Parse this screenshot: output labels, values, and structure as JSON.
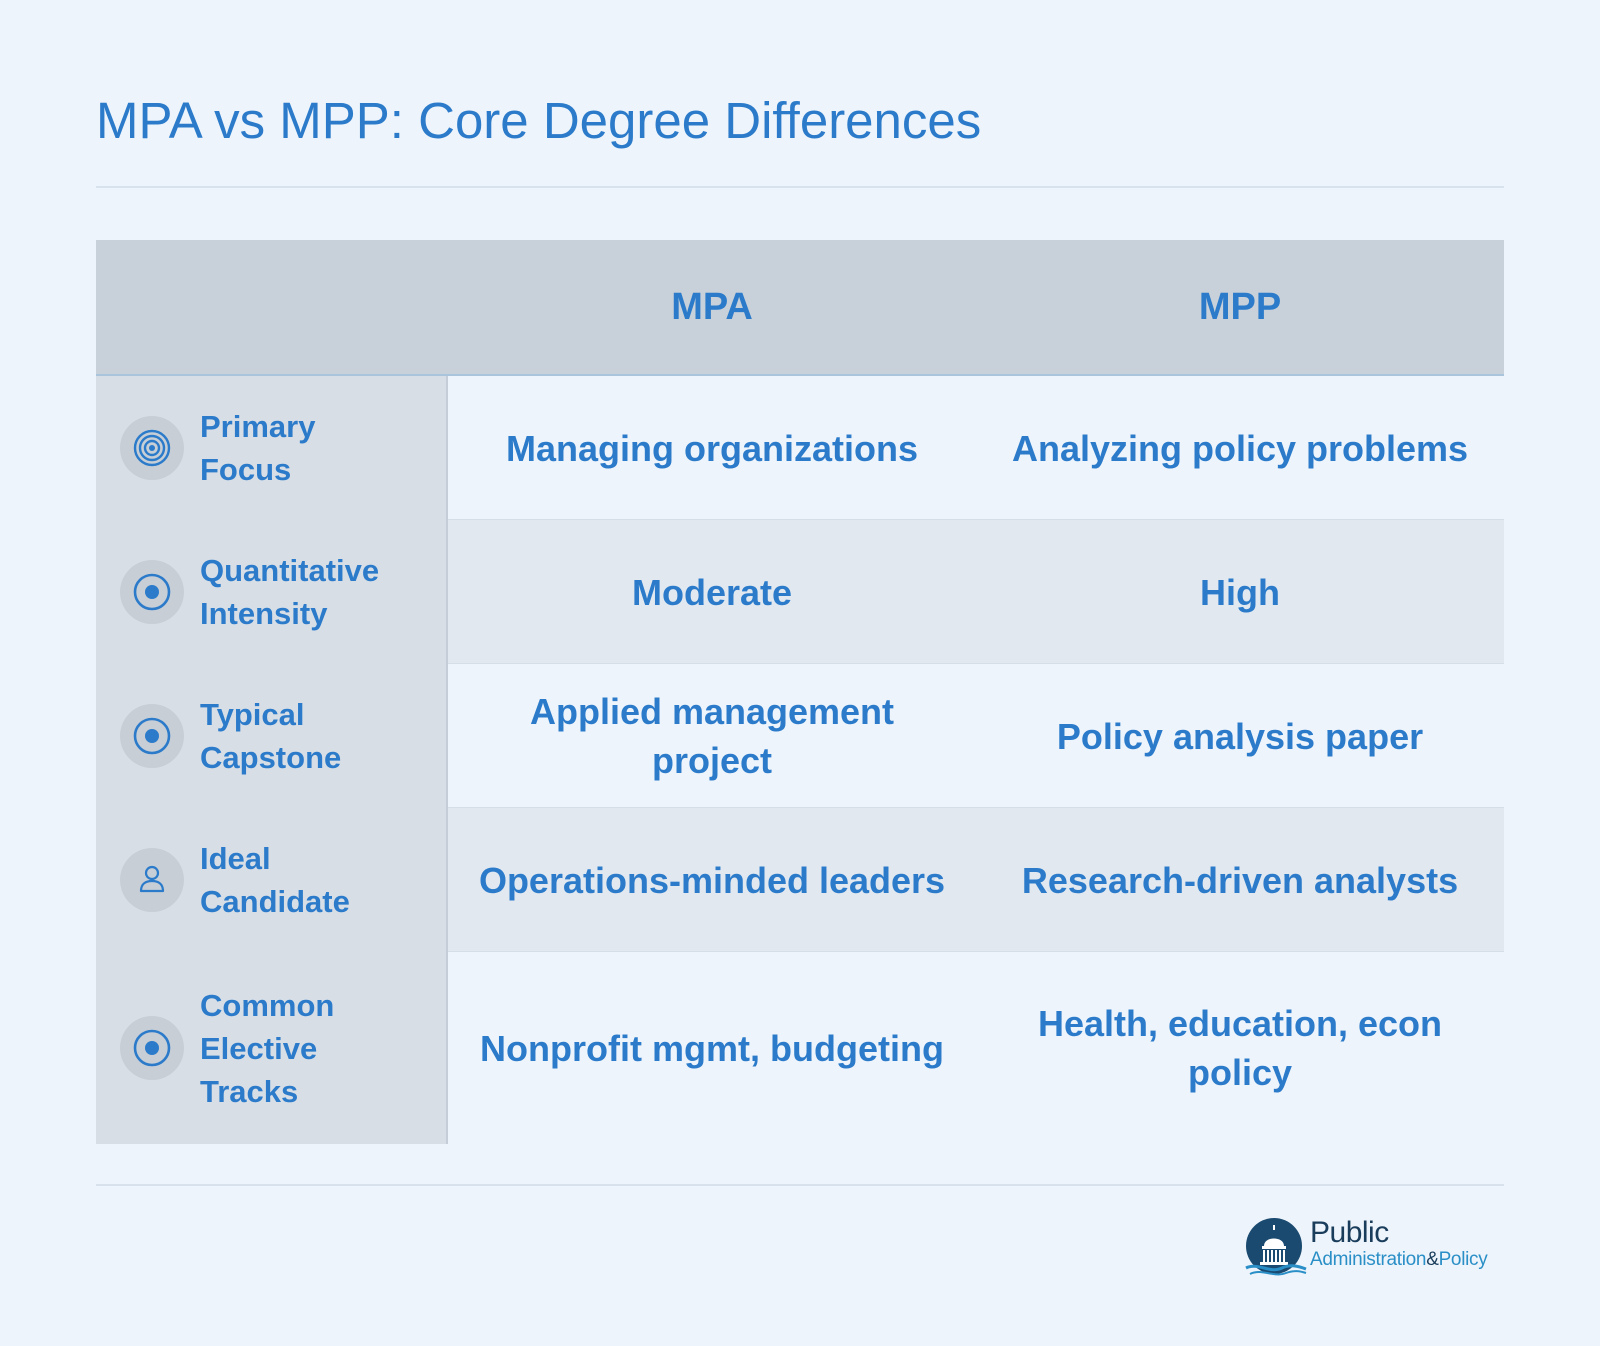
{
  "title": "MPA vs MPP: Core Degree Differences",
  "table": {
    "columns": [
      "MPA",
      "MPP"
    ],
    "rows": [
      {
        "label": "Primary\nFocus",
        "icon": "target-icon",
        "mpa": "Managing organizations",
        "mpp": "Analyzing policy problems"
      },
      {
        "label": "Quantitative\nIntensity",
        "icon": "radio-dot-icon",
        "mpa": "Moderate",
        "mpp": "High"
      },
      {
        "label": "Typical\nCapstone",
        "icon": "radio-dot-icon",
        "mpa": "Applied management project",
        "mpp": "Policy analysis paper"
      },
      {
        "label": "Ideal\nCandidate",
        "icon": "user-icon",
        "mpa": "Operations-minded leaders",
        "mpp": "Research-driven analysts"
      },
      {
        "label": "Common\nElective\nTracks",
        "icon": "radio-dot-icon",
        "mpa": "Nonprofit mgmt, budgeting",
        "mpp": "Health, education, econ policy"
      }
    ]
  },
  "logo": {
    "line1": "Public",
    "line2a": "Administration",
    "line2b": "&",
    "line2c": "Policy",
    "icon": "capitol-dome-logo"
  },
  "colors": {
    "accent": "#2b7bca",
    "background": "#edf4fb",
    "header_bg": "#c8d0d9",
    "label_bg": "#d8dee6",
    "row_shade": "#e1e8f0",
    "logo_dark": "#1a3d5c"
  }
}
